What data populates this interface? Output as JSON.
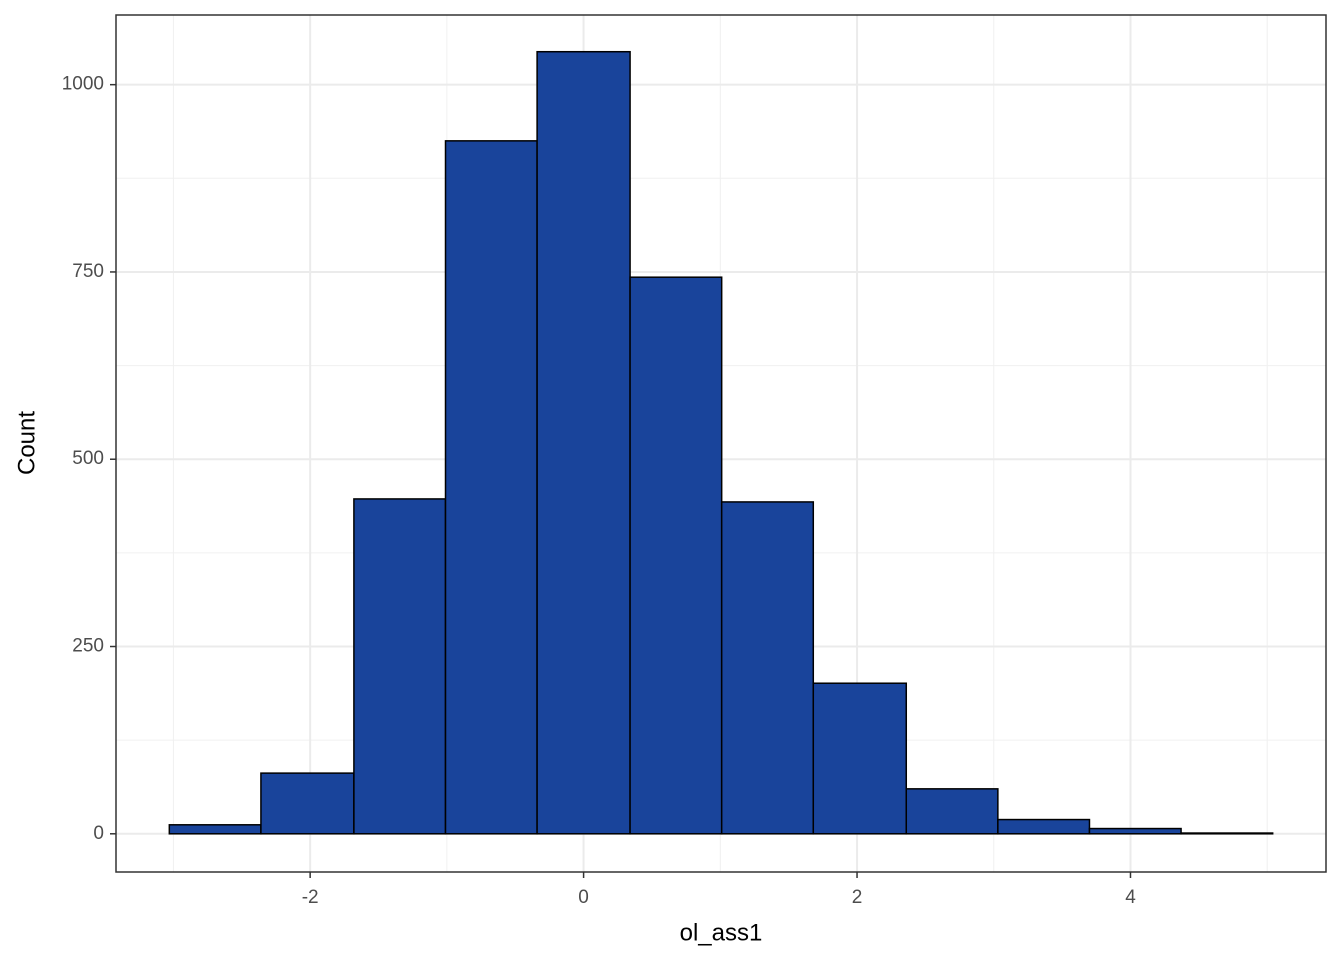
{
  "chart_data": {
    "type": "histogram",
    "x_label": "ol_ass1",
    "y_label": "Count",
    "bins": [
      -3.03,
      -2.36,
      -1.68,
      -1.01,
      -0.34,
      0.34,
      1.01,
      1.68,
      2.36,
      3.03,
      3.7,
      4.37,
      5.04
    ],
    "values": [
      12,
      81,
      447,
      925,
      1044,
      743,
      443,
      201,
      60,
      19,
      7,
      1
    ],
    "color": "#19449b",
    "edge_color": "#000000",
    "xlim": [
      -3.42,
      5.43
    ],
    "ylim": [
      -51,
      1093
    ],
    "xticks": [
      -2,
      0,
      2,
      4
    ],
    "yticks": [
      0,
      250,
      500,
      750,
      1000
    ],
    "x_minor_ticks": [
      -3,
      -1,
      1,
      3,
      5
    ],
    "y_minor_ticks": [
      125,
      375,
      625,
      875
    ],
    "grid": true
  }
}
